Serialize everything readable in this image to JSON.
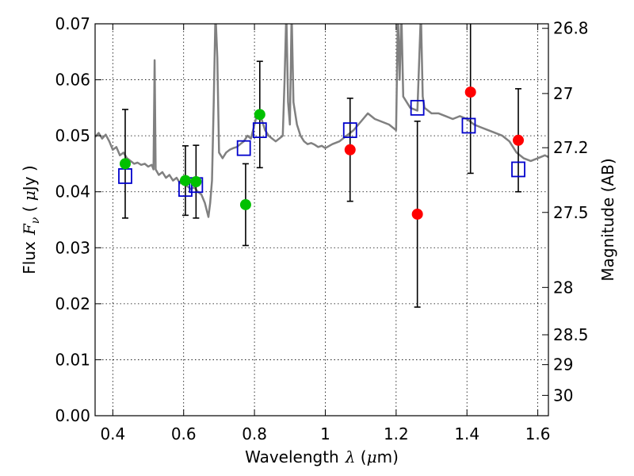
{
  "chart_data": {
    "type": "scatter",
    "xlabel_text": "Wavelength",
    "xlabel_symbol": "λ",
    "xlabel_unit_open": " (",
    "xlabel_unit_mu": "μ",
    "xlabel_unit_close": "m)",
    "ylabel_text": "Flux",
    "ylabel_symbol": "F",
    "ylabel_symbol_sub": "ν",
    "ylabel_unit_open": " ( ",
    "ylabel_unit_mu": "μ",
    "ylabel_unit_close": "Jy )",
    "y2label": "Magnitude (AB)",
    "xlim": [
      0.35,
      1.63
    ],
    "ylim": [
      0.0,
      0.07
    ],
    "xticks": [
      0.4,
      0.6,
      0.8,
      1.0,
      1.2,
      1.4,
      1.6
    ],
    "xtick_labels": [
      "0.4",
      "0.6",
      "0.8",
      "1",
      "1.2",
      "1.4",
      "1.6"
    ],
    "yticks": [
      0.0,
      0.01,
      0.02,
      0.03,
      0.04,
      0.05,
      0.06,
      0.07
    ],
    "ytick_labels": [
      "0.00",
      "0.01",
      "0.02",
      "0.03",
      "0.04",
      "0.05",
      "0.06",
      "0.07"
    ],
    "y2ticks": [
      26.8,
      27,
      27.2,
      27.5,
      28,
      28.5,
      29,
      30
    ],
    "y2tick_labels": [
      "26.8",
      "27",
      "27.2",
      "27.5",
      "28",
      "28.5",
      "29",
      "30"
    ],
    "grid": true,
    "colors": {
      "template": "#808080",
      "optical": "#00c000",
      "nir": "#ff0000",
      "model": "#0000cc",
      "errorbar": "#000000"
    },
    "series": [
      {
        "type": "line",
        "points": [
          [
            0.35,
            0.0498
          ],
          [
            0.36,
            0.0505
          ],
          [
            0.37,
            0.0495
          ],
          [
            0.38,
            0.0502
          ],
          [
            0.39,
            0.049
          ],
          [
            0.4,
            0.0475
          ],
          [
            0.41,
            0.048
          ],
          [
            0.42,
            0.0465
          ],
          [
            0.43,
            0.047
          ],
          [
            0.44,
            0.046
          ],
          [
            0.45,
            0.0455
          ],
          [
            0.46,
            0.045
          ],
          [
            0.47,
            0.0452
          ],
          [
            0.48,
            0.0448
          ],
          [
            0.49,
            0.045
          ],
          [
            0.5,
            0.0445
          ],
          [
            0.51,
            0.0448
          ],
          [
            0.515,
            0.044
          ],
          [
            0.518,
            0.0635
          ],
          [
            0.521,
            0.044
          ],
          [
            0.53,
            0.043
          ],
          [
            0.54,
            0.0435
          ],
          [
            0.55,
            0.0425
          ],
          [
            0.56,
            0.043
          ],
          [
            0.57,
            0.042
          ],
          [
            0.58,
            0.0425
          ],
          [
            0.59,
            0.0415
          ],
          [
            0.6,
            0.0418
          ],
          [
            0.61,
            0.041
          ],
          [
            0.62,
            0.0405
          ],
          [
            0.63,
            0.0408
          ],
          [
            0.64,
            0.04
          ],
          [
            0.65,
            0.0395
          ],
          [
            0.66,
            0.038
          ],
          [
            0.67,
            0.0355
          ],
          [
            0.675,
            0.038
          ],
          [
            0.68,
            0.042
          ],
          [
            0.685,
            0.056
          ],
          [
            0.69,
            0.072
          ],
          [
            0.695,
            0.064
          ],
          [
            0.7,
            0.047
          ],
          [
            0.71,
            0.046
          ],
          [
            0.72,
            0.047
          ],
          [
            0.73,
            0.0475
          ],
          [
            0.74,
            0.0478
          ],
          [
            0.75,
            0.048
          ],
          [
            0.76,
            0.0485
          ],
          [
            0.77,
            0.049
          ],
          [
            0.78,
            0.05
          ],
          [
            0.79,
            0.0495
          ],
          [
            0.8,
            0.052
          ],
          [
            0.81,
            0.0545
          ],
          [
            0.82,
            0.053
          ],
          [
            0.83,
            0.051
          ],
          [
            0.84,
            0.05
          ],
          [
            0.85,
            0.0495
          ],
          [
            0.86,
            0.049
          ],
          [
            0.87,
            0.0495
          ],
          [
            0.88,
            0.05
          ],
          [
            0.885,
            0.06
          ],
          [
            0.89,
            0.072
          ],
          [
            0.895,
            0.056
          ],
          [
            0.9,
            0.052
          ],
          [
            0.905,
            0.072
          ],
          [
            0.91,
            0.056
          ],
          [
            0.92,
            0.052
          ],
          [
            0.93,
            0.05
          ],
          [
            0.94,
            0.049
          ],
          [
            0.95,
            0.0485
          ],
          [
            0.96,
            0.0487
          ],
          [
            0.97,
            0.0484
          ],
          [
            0.98,
            0.048
          ],
          [
            0.99,
            0.0482
          ],
          [
            1.0,
            0.0478
          ],
          [
            1.02,
            0.0485
          ],
          [
            1.04,
            0.049
          ],
          [
            1.06,
            0.05
          ],
          [
            1.08,
            0.051
          ],
          [
            1.1,
            0.0525
          ],
          [
            1.12,
            0.054
          ],
          [
            1.14,
            0.053
          ],
          [
            1.16,
            0.0525
          ],
          [
            1.18,
            0.052
          ],
          [
            1.2,
            0.051
          ],
          [
            1.205,
            0.072
          ],
          [
            1.21,
            0.06
          ],
          [
            1.215,
            0.072
          ],
          [
            1.22,
            0.057
          ],
          [
            1.24,
            0.055
          ],
          [
            1.26,
            0.0545
          ],
          [
            1.27,
            0.072
          ],
          [
            1.275,
            0.057
          ],
          [
            1.28,
            0.055
          ],
          [
            1.3,
            0.054
          ],
          [
            1.32,
            0.054
          ],
          [
            1.34,
            0.0535
          ],
          [
            1.36,
            0.053
          ],
          [
            1.38,
            0.0535
          ],
          [
            1.4,
            0.053
          ],
          [
            1.42,
            0.052
          ],
          [
            1.44,
            0.0515
          ],
          [
            1.46,
            0.051
          ],
          [
            1.48,
            0.0505
          ],
          [
            1.5,
            0.05
          ],
          [
            1.52,
            0.049
          ],
          [
            1.54,
            0.047
          ],
          [
            1.56,
            0.046
          ],
          [
            1.58,
            0.0455
          ],
          [
            1.6,
            0.046
          ],
          [
            1.62,
            0.0465
          ],
          [
            1.63,
            0.0462
          ]
        ]
      },
      {
        "type": "scatter",
        "marker": "square",
        "x": [
          0.435,
          0.605,
          0.635,
          0.77,
          0.815,
          1.07,
          1.26,
          1.405,
          1.545
        ],
        "y": [
          0.0428,
          0.0405,
          0.0412,
          0.0478,
          0.051,
          0.051,
          0.055,
          0.0518,
          0.044
        ]
      },
      {
        "type": "errorbar",
        "marker": "circle",
        "x": [
          0.435,
          0.605,
          0.635,
          0.775,
          0.815
        ],
        "y": [
          0.045,
          0.042,
          0.0418,
          0.0377,
          0.0538
        ],
        "yerr": [
          0.0097,
          0.0062,
          0.0065,
          0.0073,
          0.0095
        ]
      },
      {
        "type": "errorbar",
        "marker": "circle",
        "x": [
          1.07,
          1.26,
          1.41,
          1.545
        ],
        "y": [
          0.0475,
          0.036,
          0.0578,
          0.0492
        ],
        "yerr": [
          0.0092,
          0.0166,
          0.0145,
          0.0092
        ]
      }
    ]
  }
}
